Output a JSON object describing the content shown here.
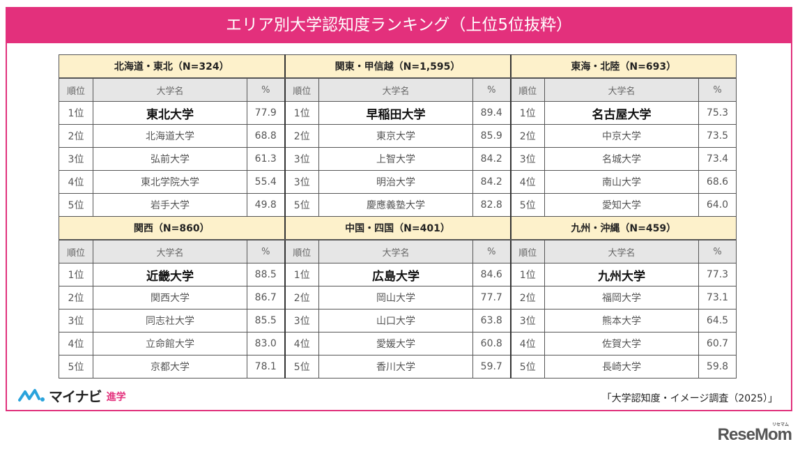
{
  "title": "エリア別大学認知度ランキング（上位5位抜粋）",
  "colors": {
    "accent": "#e3307c",
    "region_header_bg": "#fdf1cb",
    "column_header_bg": "#e6e6e6"
  },
  "column_headers": {
    "rank": "順位",
    "name": "大学名",
    "pct": "%"
  },
  "regions": [
    {
      "label": "北海道・東北（N=324）",
      "rows": [
        {
          "rank": "1位",
          "name": "東北大学",
          "pct": "77.9"
        },
        {
          "rank": "2位",
          "name": "北海道大学",
          "pct": "68.8"
        },
        {
          "rank": "3位",
          "name": "弘前大学",
          "pct": "61.3"
        },
        {
          "rank": "4位",
          "name": "東北学院大学",
          "pct": "55.4"
        },
        {
          "rank": "5位",
          "name": "岩手大学",
          "pct": "49.8"
        }
      ]
    },
    {
      "label": "関東・甲信越（N=1,595）",
      "rows": [
        {
          "rank": "1位",
          "name": "早稲田大学",
          "pct": "89.4"
        },
        {
          "rank": "2位",
          "name": "東京大学",
          "pct": "85.9"
        },
        {
          "rank": "3位",
          "name": "上智大学",
          "pct": "84.2"
        },
        {
          "rank": "3位",
          "name": "明治大学",
          "pct": "84.2"
        },
        {
          "rank": "5位",
          "name": "慶應義塾大学",
          "pct": "82.8"
        }
      ]
    },
    {
      "label": "東海・北陸（N=693）",
      "rows": [
        {
          "rank": "1位",
          "name": "名古屋大学",
          "pct": "75.3"
        },
        {
          "rank": "2位",
          "name": "中京大学",
          "pct": "73.5"
        },
        {
          "rank": "3位",
          "name": "名城大学",
          "pct": "73.4"
        },
        {
          "rank": "4位",
          "name": "南山大学",
          "pct": "68.6"
        },
        {
          "rank": "5位",
          "name": "愛知大学",
          "pct": "64.0"
        }
      ]
    },
    {
      "label": "関西（N=860）",
      "rows": [
        {
          "rank": "1位",
          "name": "近畿大学",
          "pct": "88.5"
        },
        {
          "rank": "2位",
          "name": "関西大学",
          "pct": "86.7"
        },
        {
          "rank": "3位",
          "name": "同志社大学",
          "pct": "85.5"
        },
        {
          "rank": "4位",
          "name": "立命館大学",
          "pct": "83.0"
        },
        {
          "rank": "5位",
          "name": "京都大学",
          "pct": "78.1"
        }
      ]
    },
    {
      "label": "中国・四国（N=401）",
      "rows": [
        {
          "rank": "1位",
          "name": "広島大学",
          "pct": "84.6"
        },
        {
          "rank": "2位",
          "name": "岡山大学",
          "pct": "77.7"
        },
        {
          "rank": "3位",
          "name": "山口大学",
          "pct": "63.8"
        },
        {
          "rank": "4位",
          "name": "愛媛大学",
          "pct": "60.8"
        },
        {
          "rank": "5位",
          "name": "香川大学",
          "pct": "59.7"
        }
      ]
    },
    {
      "label": "九州・沖縄（N=459）",
      "rows": [
        {
          "rank": "1位",
          "name": "九州大学",
          "pct": "77.3"
        },
        {
          "rank": "2位",
          "name": "福岡大学",
          "pct": "73.1"
        },
        {
          "rank": "3位",
          "name": "熊本大学",
          "pct": "64.5"
        },
        {
          "rank": "4位",
          "name": "佐賀大学",
          "pct": "60.7"
        },
        {
          "rank": "5位",
          "name": "長崎大学",
          "pct": "59.8"
        }
      ]
    }
  ],
  "footer": {
    "logo_brand": "マイナビ",
    "logo_sub": "進学",
    "source": "「大学認知度・イメージ調査（2025）」",
    "watermark": "ReseMom",
    "watermark_ruby": "リセマム"
  }
}
